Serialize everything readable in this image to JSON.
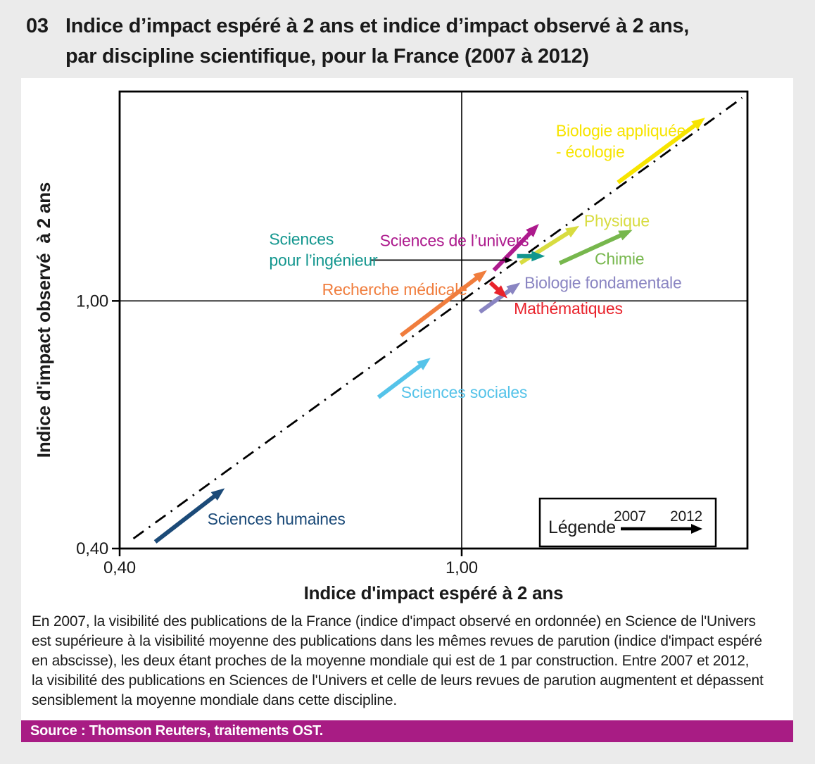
{
  "page": {
    "background": "#ebebeb",
    "panel_background": "#ffffff"
  },
  "header": {
    "number": "03",
    "title_line1": "Indice d’impact espéré à 2 ans et indice d’impact observé à 2 ans,",
    "title_line2": "par discipline scientifique, pour la France (2007 à 2012)"
  },
  "chart_data": {
    "type": "scatter",
    "subtype": "arrows from 2007 position to 2012 position, log-log axes",
    "title": "Indice d'impact espéré à 2 ans et indice d'impact observé à 2 ans, par discipline scientifique, pour la France (2007 à 2012)",
    "xlabel": "Indice d'impact espéré à 2 ans",
    "ylabel": "Indice d'impact observé  à 2 ans",
    "x_scale": "log",
    "y_scale": "log",
    "xlim": [
      0.4,
      2.15
    ],
    "ylim": [
      0.4,
      2.17
    ],
    "grid": false,
    "x_ticks": [
      {
        "value": 0.4,
        "label": "0,40"
      },
      {
        "value": 1.0,
        "label": "1,00"
      }
    ],
    "y_ticks": [
      {
        "value": 0.4,
        "label": "0,40"
      },
      {
        "value": 1.0,
        "label": "1,00"
      }
    ],
    "reference_lines": {
      "x": 1.0,
      "y": 1.0,
      "color": "#000000"
    },
    "identity_line": {
      "from": 0.415,
      "to": 2.12,
      "style": "dash-dot",
      "color": "#000000"
    },
    "series": [
      {
        "id": "sciences-humaines",
        "name": "Sciences humaines",
        "color": "#1b4a78",
        "start": [
          0.44,
          0.41
        ],
        "end": [
          0.53,
          0.5
        ],
        "label": {
          "lines": [
            "Sciences humaines"
          ],
          "anchor": [
            0.506,
            0.446
          ]
        }
      },
      {
        "id": "sciences-sociales",
        "name": "Sciences sociales",
        "color": "#55c3e9",
        "start": [
          0.8,
          0.7
        ],
        "end": [
          0.92,
          0.81
        ],
        "label": {
          "lines": [
            "Sciences sociales"
          ],
          "anchor": [
            0.85,
            0.713
          ]
        }
      },
      {
        "id": "recherche-medicale",
        "name": "Recherche médicale",
        "color": "#f07d3d",
        "start": [
          0.85,
          0.88
        ],
        "end": [
          1.07,
          1.12
        ],
        "label": {
          "lines": [
            "Recherche médicale"
          ],
          "anchor": [
            0.688,
            1.043
          ]
        }
      },
      {
        "id": "sciences-de-l-univers",
        "name": "Sciences de l’univers",
        "color": "#ad1a8d",
        "start": [
          1.09,
          1.12
        ],
        "end": [
          1.23,
          1.33
        ],
        "label": {
          "lines": [
            "Sciences de l’univers"
          ],
          "anchor": [
            0.803,
            1.251
          ]
        }
      },
      {
        "id": "biologie-fondamentale",
        "name": "Biologie fondamentale",
        "color": "#8a85c2",
        "start": [
          1.05,
          0.96
        ],
        "end": [
          1.17,
          1.07
        ],
        "label": {
          "lines": [
            "Biologie fondamentale"
          ],
          "anchor": [
            1.183,
            1.07
          ]
        }
      },
      {
        "id": "mathematiques",
        "name": "Mathématiques",
        "color": "#e9222b",
        "start": [
          1.08,
          1.07
        ],
        "end": [
          1.13,
          1.01
        ],
        "label": {
          "lines": [
            "Mathématiques"
          ],
          "anchor": [
            1.15,
            0.972
          ]
        }
      },
      {
        "id": "physique",
        "name": "Physique",
        "color": "#d8dc40",
        "start": [
          1.17,
          1.15
        ],
        "end": [
          1.37,
          1.32
        ],
        "label": {
          "lines": [
            "Physique"
          ],
          "anchor": [
            1.388,
            1.346
          ]
        }
      },
      {
        "id": "chimie",
        "name": "Chimie",
        "color": "#77b74d",
        "start": [
          1.3,
          1.15
        ],
        "end": [
          1.58,
          1.3
        ],
        "label": {
          "lines": [
            "Chimie"
          ],
          "anchor": [
            1.428,
            1.169
          ]
        }
      },
      {
        "id": "sciences-pour-l-ingenieur",
        "name": "Sciences pour l’ingénieur",
        "color": "#12968e",
        "start": [
          1.16,
          1.18
        ],
        "end": [
          1.25,
          1.18
        ],
        "label": {
          "lines": [
            "Sciences",
            "pour l’ingénieur"
          ],
          "anchor": [
            0.597,
            1.257
          ]
        },
        "leader": {
          "from": [
            0.784,
            1.163
          ],
          "to": [
            1.147,
            1.163
          ]
        }
      },
      {
        "id": "biologie-appliquee-ecologie",
        "name": "Biologie appliquée - écologie",
        "color": "#f7e400",
        "start": [
          1.52,
          1.55
        ],
        "end": [
          1.92,
          1.97
        ],
        "label": {
          "lines": [
            "Biologie appliquée",
            "- écologie"
          ],
          "anchor": [
            1.287,
            1.878
          ]
        }
      }
    ],
    "legend": {
      "title": "Légende",
      "from_label": "2007",
      "to_label": "2012",
      "position": "bottom-right"
    }
  },
  "caption": {
    "lines": [
      "En 2007, la visibilité des publications de la France (indice d'impact observé en ordonnée) en Science de l'Univers",
      "est supérieure à la visibilité moyenne des publications dans les mêmes revues de parution (indice d'impact espéré",
      "en abscisse), les deux étant proches de la moyenne mondiale qui est de 1 par construction. Entre 2007 et 2012,",
      "la visibilité des publications en Sciences de l'Univers et celle de leurs revues de parution augmentent et dépassent",
      "sensiblement la moyenne mondiale dans cette discipline."
    ]
  },
  "source": {
    "text": "Source : Thomson Reuters, traitements OST.",
    "background": "#a81c84"
  }
}
